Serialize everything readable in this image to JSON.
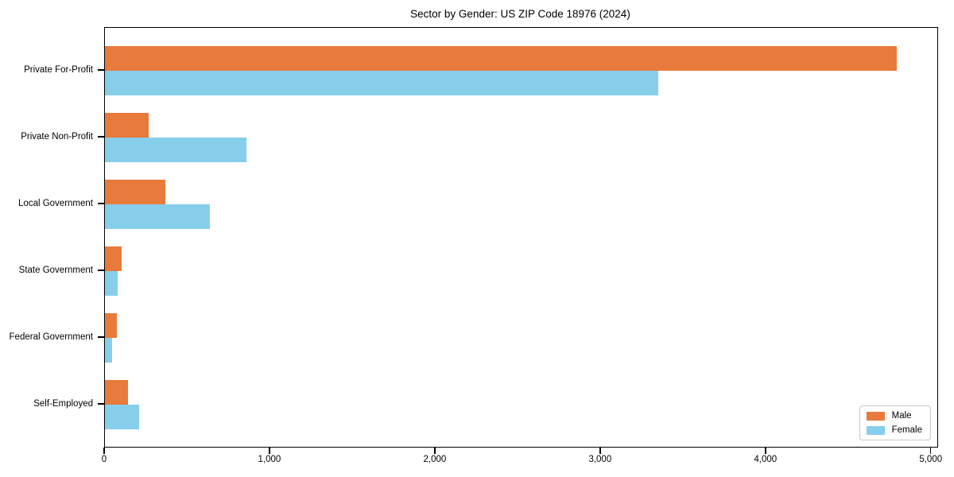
{
  "chart_data": {
    "type": "bar",
    "orientation": "horizontal",
    "title": "Sector by Gender: US ZIP Code 18976 (2024)",
    "categories": [
      "Private For-Profit",
      "Private Non-Profit",
      "Local Government",
      "State Government",
      "Federal Government",
      "Self-Employed"
    ],
    "series": [
      {
        "name": "Male",
        "color": "#e87a3c",
        "values": [
          4790,
          265,
          365,
          100,
          70,
          140
        ]
      },
      {
        "name": "Female",
        "color": "#87ceeb",
        "values": [
          3345,
          855,
          635,
          75,
          45,
          205
        ]
      }
    ],
    "xlabel": "",
    "ylabel": "",
    "x_ticks": [
      0,
      1000,
      2000,
      3000,
      4000,
      5000
    ],
    "x_tick_labels": [
      "0",
      "1,000",
      "2,000",
      "3,000",
      "4,000",
      "5,000"
    ],
    "xlim": [
      0,
      5035
    ],
    "grid": false,
    "legend": {
      "position": "lower-right",
      "labels": [
        "Male",
        "Female"
      ]
    }
  },
  "colors": {
    "male": "#e87a3c",
    "female": "#87ceeb",
    "axis": "#000000",
    "background": "#ffffff",
    "legend_border": "#c9c9c9"
  }
}
